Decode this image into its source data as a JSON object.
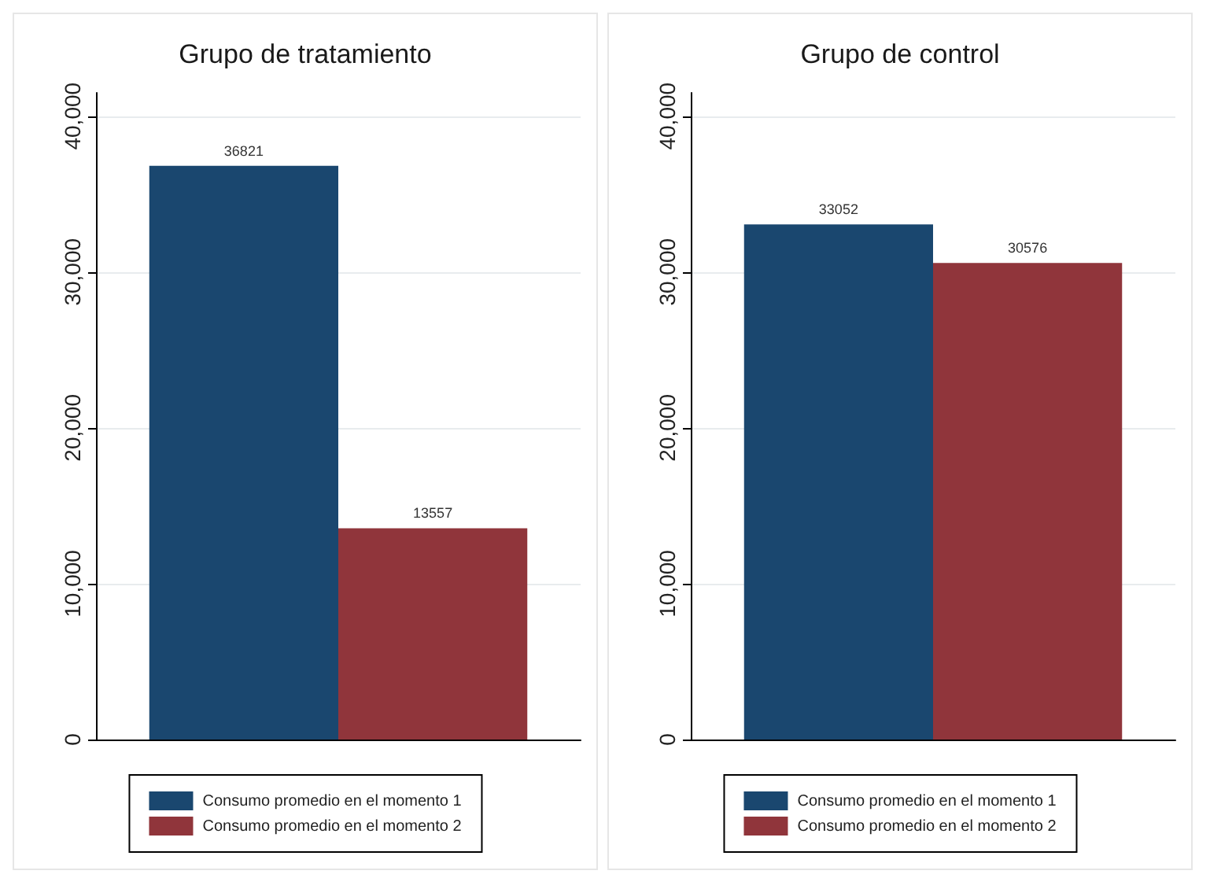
{
  "chart_data": [
    {
      "type": "bar",
      "title": "Grupo de tratamiento",
      "categories": [
        null
      ],
      "series": [
        {
          "name": "Consumo promedio en el momento 1",
          "color": "#1a476f",
          "values": [
            36821
          ]
        },
        {
          "name": "Consumo promedio en el momento 2",
          "color": "#90353b",
          "values": [
            13557
          ]
        }
      ],
      "ylim": [
        0,
        41500
      ],
      "yticks": [
        0,
        {
          "value": 10000,
          "label": "10,000"
        },
        {
          "value": 20000,
          "label": "20,000"
        },
        {
          "value": 30000,
          "label": "30,000"
        },
        {
          "value": 40000,
          "label": "40,000"
        }
      ],
      "grid": "y",
      "legend": "bottom",
      "data_labels": true
    },
    {
      "type": "bar",
      "title": "Grupo de control",
      "categories": [
        null
      ],
      "series": [
        {
          "name": "Consumo promedio en el momento 1",
          "color": "#1a476f",
          "values": [
            33052
          ]
        },
        {
          "name": "Consumo promedio en el momento 2",
          "color": "#90353b",
          "values": [
            30576
          ]
        }
      ],
      "ylim": [
        0,
        41500
      ],
      "yticks": [
        0,
        {
          "value": 10000,
          "label": "10,000"
        },
        {
          "value": 20000,
          "label": "20,000"
        },
        {
          "value": 30000,
          "label": "30,000"
        },
        {
          "value": 40000,
          "label": "40,000"
        }
      ],
      "grid": "y",
      "legend": "bottom",
      "data_labels": true
    }
  ]
}
